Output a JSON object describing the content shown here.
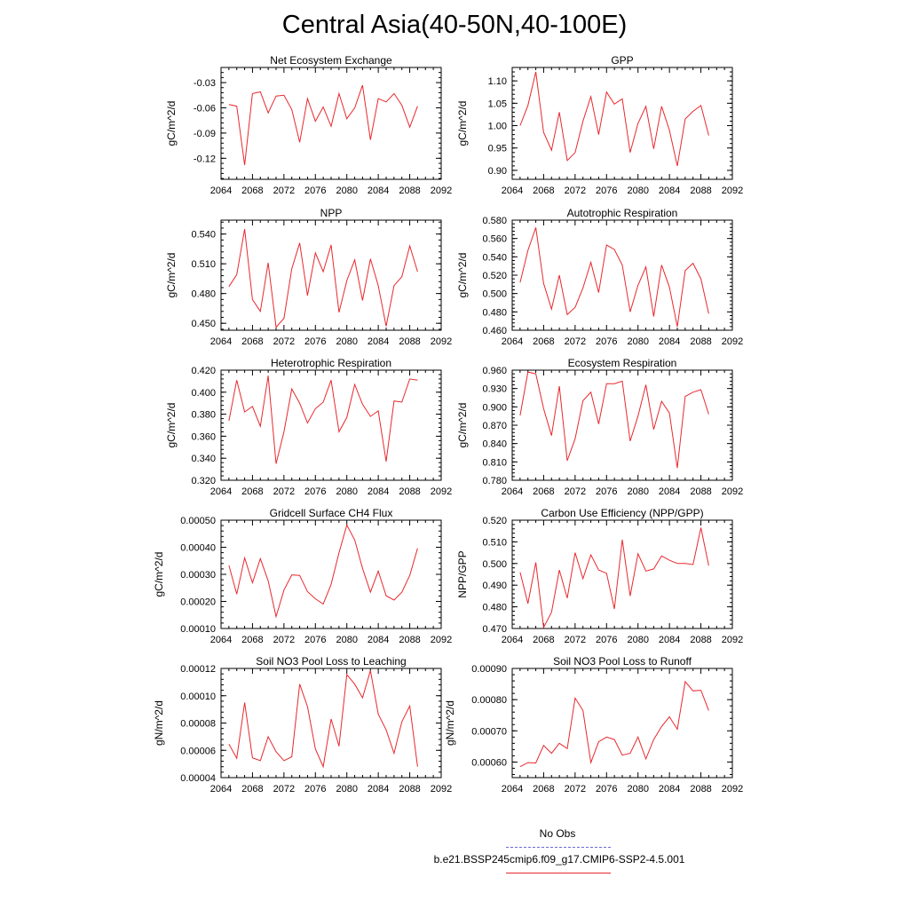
{
  "title": "Central Asia(40-50N,40-100E)",
  "legend": {
    "obs_label": "No Obs",
    "run_label": "b.e21.BSSP245cmip6.f09_g17.CMIP6-SSP2-4.5.001",
    "obs_color": "#6a6ad8",
    "run_color": "#e8282e"
  },
  "chart_data": [
    {
      "type": "line",
      "title": "Net Ecosystem Exchange",
      "ylabel": "gC/m^2/d",
      "xlim": [
        2064,
        2092
      ],
      "x_ticks": [
        "2064",
        "2068",
        "2072",
        "2076",
        "2080",
        "2084",
        "2088",
        "2092"
      ],
      "ylim": [
        -0.145,
        -0.012
      ],
      "y_ticks": [
        -0.12,
        -0.09,
        -0.06,
        -0.03
      ],
      "y_tick_labels": [
        "-0.12",
        "-0.09",
        "-0.06",
        "-0.03"
      ],
      "x": [
        2065,
        2066,
        2067,
        2068,
        2069,
        2070,
        2071,
        2072,
        2073,
        2074,
        2075,
        2076,
        2077,
        2078,
        2079,
        2080,
        2081,
        2082,
        2083,
        2084,
        2085,
        2086,
        2087,
        2088,
        2089
      ],
      "series": [
        {
          "values": [
            -0.056,
            -0.058,
            -0.128,
            -0.043,
            -0.041,
            -0.066,
            -0.046,
            -0.045,
            -0.062,
            -0.101,
            -0.049,
            -0.076,
            -0.059,
            -0.082,
            -0.043,
            -0.073,
            -0.06,
            -0.033,
            -0.098,
            -0.049,
            -0.053,
            -0.043,
            -0.057,
            -0.083,
            -0.058
          ]
        }
      ]
    },
    {
      "type": "line",
      "title": "GPP",
      "ylabel": "gC/m^2/d",
      "xlim": [
        2064,
        2092
      ],
      "x_ticks": [
        "2064",
        "2068",
        "2072",
        "2076",
        "2080",
        "2084",
        "2088",
        "2092"
      ],
      "ylim": [
        0.88,
        1.13
      ],
      "y_ticks": [
        0.9,
        0.95,
        1.0,
        1.05,
        1.1
      ],
      "y_tick_labels": [
        "0.90",
        "0.95",
        "1.00",
        "1.05",
        "1.10"
      ],
      "x": [
        2065,
        2066,
        2067,
        2068,
        2069,
        2070,
        2071,
        2072,
        2073,
        2074,
        2075,
        2076,
        2077,
        2078,
        2079,
        2080,
        2081,
        2082,
        2083,
        2084,
        2085,
        2086,
        2087,
        2088,
        2089
      ],
      "series": [
        {
          "values": [
            1.0,
            1.045,
            1.12,
            0.985,
            0.945,
            1.03,
            0.922,
            0.94,
            1.01,
            1.065,
            0.98,
            1.075,
            1.048,
            1.06,
            0.94,
            1.005,
            1.043,
            0.948,
            1.043,
            0.99,
            0.91,
            1.015,
            1.032,
            1.045,
            0.978
          ]
        }
      ]
    },
    {
      "type": "line",
      "title": "NPP",
      "ylabel": "gC/m^2/d",
      "xlim": [
        2064,
        2092
      ],
      "x_ticks": [
        "2064",
        "2068",
        "2072",
        "2076",
        "2080",
        "2084",
        "2088",
        "2092"
      ],
      "ylim": [
        0.443,
        0.554
      ],
      "y_ticks": [
        0.45,
        0.48,
        0.51,
        0.54
      ],
      "y_tick_labels": [
        "0.450",
        "0.480",
        "0.510",
        "0.540"
      ],
      "x": [
        2065,
        2066,
        2067,
        2068,
        2069,
        2070,
        2071,
        2072,
        2073,
        2074,
        2075,
        2076,
        2077,
        2078,
        2079,
        2080,
        2081,
        2082,
        2083,
        2084,
        2085,
        2086,
        2087,
        2088,
        2089
      ],
      "series": [
        {
          "values": [
            0.487,
            0.499,
            0.545,
            0.474,
            0.462,
            0.511,
            0.446,
            0.455,
            0.505,
            0.531,
            0.478,
            0.521,
            0.502,
            0.529,
            0.461,
            0.493,
            0.514,
            0.473,
            0.515,
            0.488,
            0.447,
            0.488,
            0.497,
            0.528,
            0.502
          ]
        }
      ]
    },
    {
      "type": "line",
      "title": "Autotrophic Respiration",
      "ylabel": "gC/m^2/d",
      "xlim": [
        2064,
        2092
      ],
      "x_ticks": [
        "2064",
        "2068",
        "2072",
        "2076",
        "2080",
        "2084",
        "2088",
        "2092"
      ],
      "ylim": [
        0.46,
        0.58
      ],
      "y_ticks": [
        0.46,
        0.48,
        0.5,
        0.52,
        0.54,
        0.56,
        0.58
      ],
      "y_tick_labels": [
        "0.460",
        "0.480",
        "0.500",
        "0.520",
        "0.540",
        "0.560",
        "0.580"
      ],
      "x": [
        2065,
        2066,
        2067,
        2068,
        2069,
        2070,
        2071,
        2072,
        2073,
        2074,
        2075,
        2076,
        2077,
        2078,
        2079,
        2080,
        2081,
        2082,
        2083,
        2084,
        2085,
        2086,
        2087,
        2088,
        2089
      ],
      "series": [
        {
          "values": [
            0.512,
            0.547,
            0.572,
            0.511,
            0.483,
            0.52,
            0.477,
            0.485,
            0.506,
            0.534,
            0.501,
            0.553,
            0.548,
            0.531,
            0.48,
            0.509,
            0.529,
            0.475,
            0.531,
            0.507,
            0.464,
            0.525,
            0.533,
            0.516,
            0.478
          ]
        }
      ]
    },
    {
      "type": "line",
      "title": "Heterotrophic Respiration",
      "ylabel": "gC/m^2/d",
      "xlim": [
        2064,
        2092
      ],
      "x_ticks": [
        "2064",
        "2068",
        "2072",
        "2076",
        "2080",
        "2084",
        "2088",
        "2092"
      ],
      "ylim": [
        0.32,
        0.42
      ],
      "y_ticks": [
        0.32,
        0.34,
        0.36,
        0.38,
        0.4,
        0.42
      ],
      "y_tick_labels": [
        "0.320",
        "0.340",
        "0.360",
        "0.380",
        "0.400",
        "0.420"
      ],
      "x": [
        2065,
        2066,
        2067,
        2068,
        2069,
        2070,
        2071,
        2072,
        2073,
        2074,
        2075,
        2076,
        2077,
        2078,
        2079,
        2080,
        2081,
        2082,
        2083,
        2084,
        2085,
        2086,
        2087,
        2088,
        2089
      ],
      "series": [
        {
          "values": [
            0.374,
            0.411,
            0.382,
            0.387,
            0.369,
            0.415,
            0.335,
            0.364,
            0.403,
            0.39,
            0.372,
            0.385,
            0.391,
            0.411,
            0.364,
            0.377,
            0.407,
            0.389,
            0.378,
            0.383,
            0.337,
            0.392,
            0.391,
            0.412,
            0.411
          ]
        }
      ]
    },
    {
      "type": "line",
      "title": "Ecosystem Respiration",
      "ylabel": "gC/m^2/d",
      "xlim": [
        2064,
        2092
      ],
      "x_ticks": [
        "2064",
        "2068",
        "2072",
        "2076",
        "2080",
        "2084",
        "2088",
        "2092"
      ],
      "ylim": [
        0.78,
        0.96
      ],
      "y_ticks": [
        0.78,
        0.81,
        0.84,
        0.87,
        0.9,
        0.93,
        0.96
      ],
      "y_tick_labels": [
        "0.780",
        "0.810",
        "0.840",
        "0.870",
        "0.900",
        "0.930",
        "0.960"
      ],
      "x": [
        2065,
        2066,
        2067,
        2068,
        2069,
        2070,
        2071,
        2072,
        2073,
        2074,
        2075,
        2076,
        2077,
        2078,
        2079,
        2080,
        2081,
        2082,
        2083,
        2084,
        2085,
        2086,
        2087,
        2088,
        2089
      ],
      "series": [
        {
          "values": [
            0.886,
            0.957,
            0.954,
            0.897,
            0.853,
            0.934,
            0.812,
            0.848,
            0.91,
            0.924,
            0.872,
            0.938,
            0.938,
            0.942,
            0.844,
            0.885,
            0.936,
            0.863,
            0.909,
            0.89,
            0.8,
            0.917,
            0.924,
            0.928,
            0.888
          ]
        }
      ]
    },
    {
      "type": "line",
      "title": "Gridcell Surface CH4 Flux",
      "ylabel": "gC/m^2/d",
      "xlim": [
        2064,
        2092
      ],
      "x_ticks": [
        "2064",
        "2068",
        "2072",
        "2076",
        "2080",
        "2084",
        "2088",
        "2092"
      ],
      "ylim": [
        0.0001,
        0.0005
      ],
      "y_ticks": [
        0.0001,
        0.0002,
        0.0003,
        0.0004,
        0.0005
      ],
      "y_tick_labels": [
        "0.00010",
        "0.00020",
        "0.00030",
        "0.00040",
        "0.00050"
      ],
      "x": [
        2065,
        2066,
        2067,
        2068,
        2069,
        2070,
        2071,
        2072,
        2073,
        2074,
        2075,
        2076,
        2077,
        2078,
        2079,
        2080,
        2081,
        2082,
        2083,
        2084,
        2085,
        2086,
        2087,
        2088,
        2089
      ],
      "series": [
        {
          "values": [
            0.000333,
            0.000227,
            0.000361,
            0.000269,
            0.000358,
            0.000276,
            0.000144,
            0.000242,
            0.000298,
            0.000296,
            0.000236,
            0.00021,
            0.00019,
            0.000263,
            0.00038,
            0.000482,
            0.000427,
            0.000322,
            0.000234,
            0.000312,
            0.000221,
            0.000205,
            0.000234,
            0.000296,
            0.000396
          ]
        }
      ]
    },
    {
      "type": "line",
      "title": "Carbon Use Efficiency (NPP/GPP)",
      "ylabel": "NPP/GPP",
      "xlim": [
        2064,
        2092
      ],
      "x_ticks": [
        "2064",
        "2068",
        "2072",
        "2076",
        "2080",
        "2084",
        "2088",
        "2092"
      ],
      "ylim": [
        0.47,
        0.52
      ],
      "y_ticks": [
        0.47,
        0.48,
        0.49,
        0.5,
        0.51,
        0.52
      ],
      "y_tick_labels": [
        "0.470",
        "0.480",
        "0.490",
        "0.500",
        "0.510",
        "0.520"
      ],
      "x": [
        2065,
        2066,
        2067,
        2068,
        2069,
        2070,
        2071,
        2072,
        2073,
        2074,
        2075,
        2076,
        2077,
        2078,
        2079,
        2080,
        2081,
        2082,
        2083,
        2084,
        2085,
        2086,
        2087,
        2088,
        2089
      ],
      "series": [
        {
          "values": [
            0.496,
            0.4815,
            0.5005,
            0.4705,
            0.4775,
            0.497,
            0.484,
            0.505,
            0.493,
            0.504,
            0.497,
            0.4955,
            0.479,
            0.511,
            0.485,
            0.5045,
            0.4965,
            0.4975,
            0.5035,
            0.5015,
            0.5,
            0.5,
            0.4995,
            0.5165,
            0.499
          ]
        }
      ]
    },
    {
      "type": "line",
      "title": "Soil NO3 Pool Loss to Leaching",
      "ylabel": "gN/m^2/d",
      "xlim": [
        2064,
        2092
      ],
      "x_ticks": [
        "2064",
        "2068",
        "2072",
        "2076",
        "2080",
        "2084",
        "2088",
        "2092"
      ],
      "ylim": [
        4e-05,
        0.00012
      ],
      "y_ticks": [
        4e-05,
        6e-05,
        8e-05,
        0.0001,
        0.00012
      ],
      "y_tick_labels": [
        "0.00004",
        "0.00006",
        "0.00008",
        "0.00010",
        "0.00012"
      ],
      "x": [
        2065,
        2066,
        2067,
        2068,
        2069,
        2070,
        2071,
        2072,
        2073,
        2074,
        2075,
        2076,
        2077,
        2078,
        2079,
        2080,
        2081,
        2082,
        2083,
        2084,
        2085,
        2086,
        2087,
        2088,
        2089
      ],
      "series": [
        {
          "values": [
            6.45e-05,
            5.42e-05,
            9.5e-05,
            5.45e-05,
            5.25e-05,
            7e-05,
            5.9e-05,
            5.24e-05,
            5.53e-05,
            0.0001085,
            9.2e-05,
            6.1e-05,
            4.8e-05,
            8.3e-05,
            6.3e-05,
            0.0001155,
            0.0001085,
            9.85e-05,
            0.0001185,
            8.65e-05,
            7.5e-05,
            5.78e-05,
            8.1e-05,
            9.25e-05,
            4.8e-05
          ]
        }
      ]
    },
    {
      "type": "line",
      "title": "Soil NO3 Pool Loss to Runoff",
      "ylabel": "gN/m^2/d",
      "xlim": [
        2064,
        2092
      ],
      "x_ticks": [
        "2064",
        "2068",
        "2072",
        "2076",
        "2080",
        "2084",
        "2088",
        "2092"
      ],
      "ylim": [
        0.00055,
        0.0009
      ],
      "y_ticks": [
        0.0006,
        0.0007,
        0.0008,
        0.0009
      ],
      "y_tick_labels": [
        "0.00060",
        "0.00070",
        "0.00080",
        "0.00090"
      ],
      "x": [
        2065,
        2066,
        2067,
        2068,
        2069,
        2070,
        2071,
        2072,
        2073,
        2074,
        2075,
        2076,
        2077,
        2078,
        2079,
        2080,
        2081,
        2082,
        2083,
        2084,
        2085,
        2086,
        2087,
        2088,
        2089
      ],
      "series": [
        {
          "values": [
            0.000585,
            0.000598,
            0.000597,
            0.000653,
            0.000628,
            0.00066,
            0.000643,
            0.000805,
            0.000765,
            0.000598,
            0.000665,
            0.00068,
            0.000672,
            0.000622,
            0.000628,
            0.00068,
            0.00061,
            0.000672,
            0.000714,
            0.000745,
            0.000705,
            0.000858,
            0.000828,
            0.00083,
            0.000765
          ]
        }
      ]
    }
  ]
}
